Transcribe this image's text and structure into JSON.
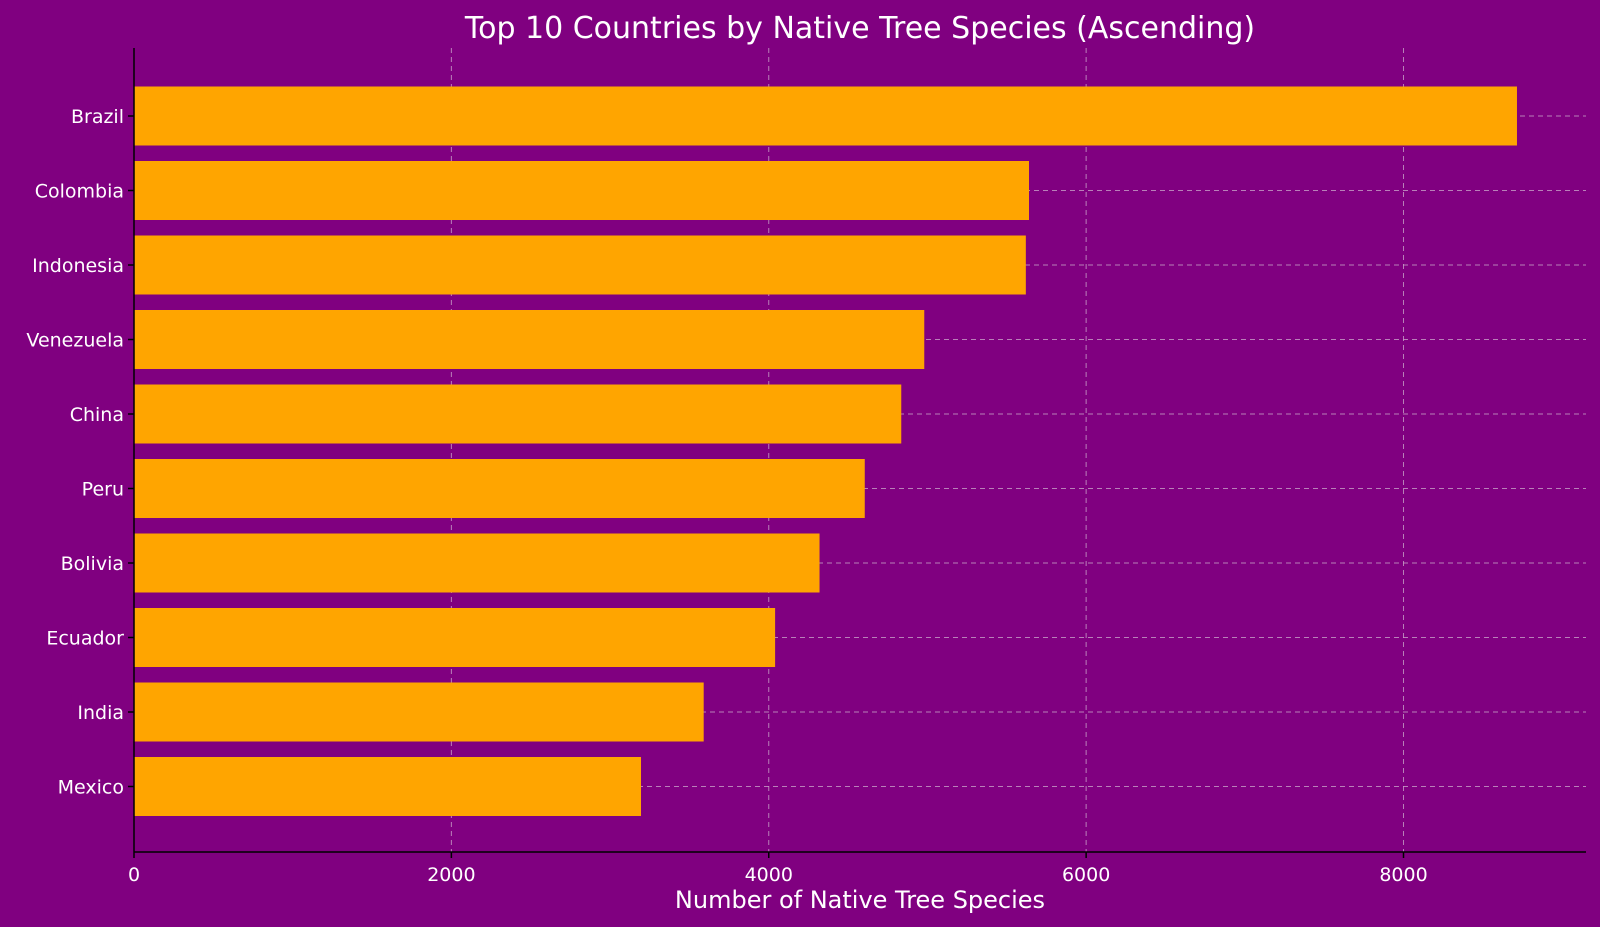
{
  "chart_data": {
    "type": "bar",
    "orientation": "horizontal",
    "title": "Top 10 Countries by Native Tree Species (Ascending)",
    "xlabel": "Number of Native Tree Species",
    "ylabel": "",
    "categories": [
      "Brazil",
      "Colombia",
      "Indonesia",
      "Venezuela",
      "China",
      "Peru",
      "Bolivia",
      "Ecuador",
      "India",
      "Mexico"
    ],
    "values": [
      8715,
      5640,
      5620,
      4980,
      4835,
      4605,
      4320,
      4040,
      3590,
      3195
    ],
    "xlim": [
      0,
      9150
    ],
    "xticks": [
      0,
      2000,
      4000,
      6000,
      8000
    ],
    "grid": true,
    "colors": {
      "background": "#800080",
      "bar": "#ffa500",
      "text": "#ffffff"
    }
  }
}
